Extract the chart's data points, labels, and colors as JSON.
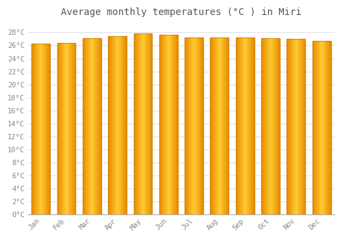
{
  "title": "Average monthly temperatures (°C ) in Miri",
  "months": [
    "Jan",
    "Feb",
    "Mar",
    "Apr",
    "May",
    "Jun",
    "Jul",
    "Aug",
    "Sep",
    "Oct",
    "Nov",
    "Dec"
  ],
  "temperatures": [
    26.3,
    26.4,
    27.1,
    27.4,
    27.8,
    27.6,
    27.2,
    27.2,
    27.2,
    27.1,
    27.0,
    26.7
  ],
  "bar_color_center": "#FFCC33",
  "bar_color_edge": "#E88A00",
  "ytick_values": [
    0,
    2,
    4,
    6,
    8,
    10,
    12,
    14,
    16,
    18,
    20,
    22,
    24,
    26,
    28
  ],
  "ylim": [
    0,
    29.5
  ],
  "background_color": "#FFFFFF",
  "grid_color": "#E0E0E8",
  "title_fontsize": 10,
  "tick_fontsize": 7.5,
  "font_family": "monospace"
}
